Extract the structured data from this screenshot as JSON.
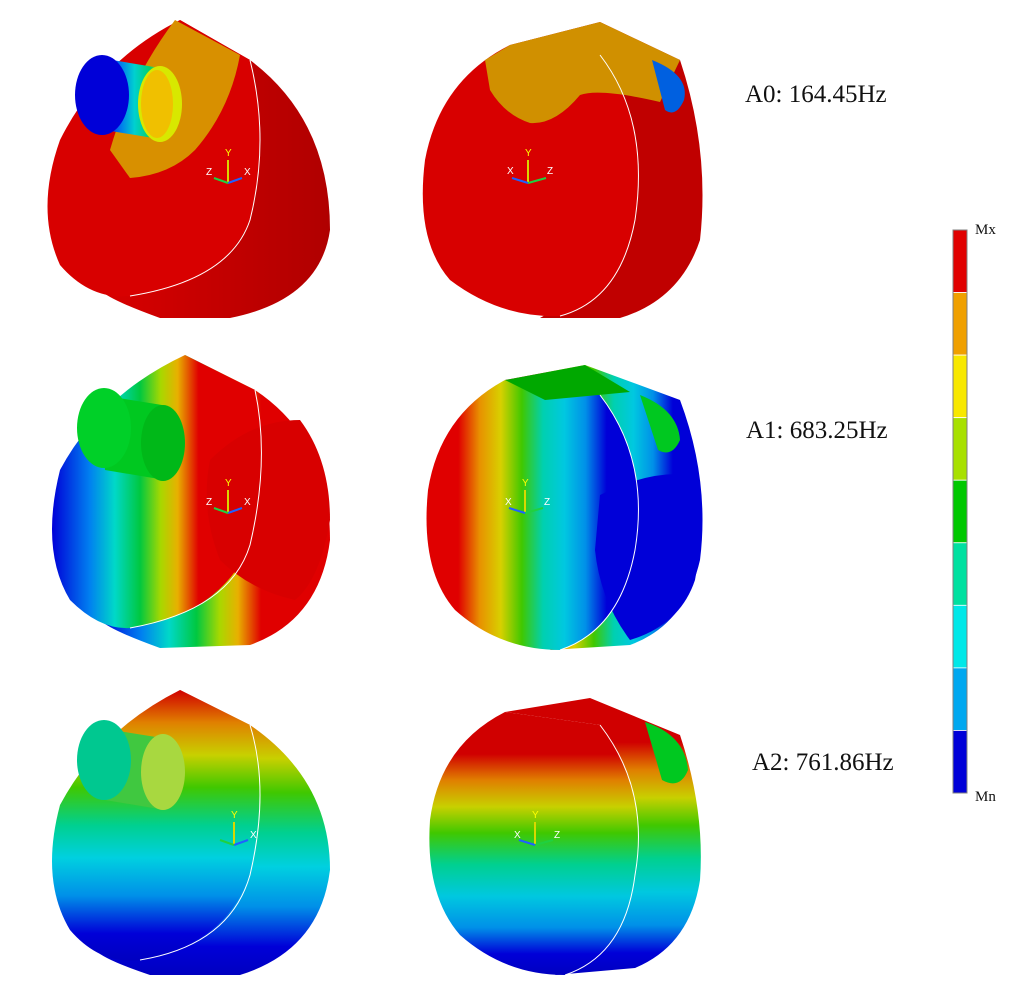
{
  "modes": [
    {
      "label": "A0: 164.45Hz"
    },
    {
      "label": "A1: 683.25Hz"
    },
    {
      "label": "A2: 761.86Hz"
    }
  ],
  "legend": {
    "max_label": "Mx",
    "min_label": "Mn",
    "colors": [
      "#e00000",
      "#f0a000",
      "#f8e800",
      "#a8e000",
      "#00c800",
      "#00e0a0",
      "#00e8e8",
      "#00a8f0",
      "#0000d8"
    ]
  },
  "triad": {
    "front": {
      "x": "X",
      "y": "Y",
      "z": "Z"
    },
    "back": {
      "x": "X",
      "y": "Y",
      "z": "Z"
    }
  }
}
